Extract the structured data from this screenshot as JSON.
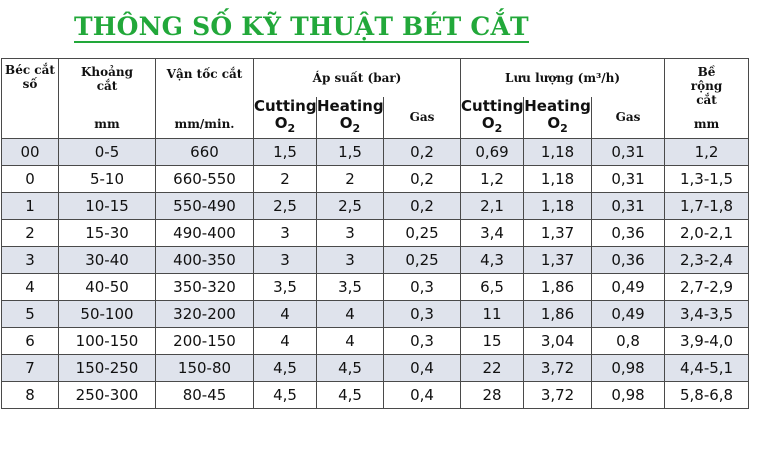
{
  "title": "THÔNG SỐ KỸ THUẬT BÉT CẮT",
  "header": {
    "tip_no": "Béc cắt số",
    "distance": "Khoảng cắt",
    "distance_unit": "mm",
    "speed": "Vận tốc cắt",
    "speed_unit": "mm/min.",
    "pressure": "Áp suất  (bar)",
    "flow": "Lưu lượng  (m³/h)",
    "width": "Bề rộng cắt",
    "width_unit": "mm",
    "cutting": "Cutting",
    "heating": "Heating",
    "o2": "O",
    "o2_sub": "2",
    "gas": "Gas"
  },
  "rows": [
    [
      "00",
      "0-5",
      "660",
      "1,5",
      "1,5",
      "0,2",
      "0,69",
      "1,18",
      "0,31",
      "1,2"
    ],
    [
      "0",
      "5-10",
      "660-550",
      "2",
      "2",
      "0,2",
      "1,2",
      "1,18",
      "0,31",
      "1,3-1,5"
    ],
    [
      "1",
      "10-15",
      "550-490",
      "2,5",
      "2,5",
      "0,2",
      "2,1",
      "1,18",
      "0,31",
      "1,7-1,8"
    ],
    [
      "2",
      "15-30",
      "490-400",
      "3",
      "3",
      "0,25",
      "3,4",
      "1,37",
      "0,36",
      "2,0-2,1"
    ],
    [
      "3",
      "30-40",
      "400-350",
      "3",
      "3",
      "0,25",
      "4,3",
      "1,37",
      "0,36",
      "2,3-2,4"
    ],
    [
      "4",
      "40-50",
      "350-320",
      "3,5",
      "3,5",
      "0,3",
      "6,5",
      "1,86",
      "0,49",
      "2,7-2,9"
    ],
    [
      "5",
      "50-100",
      "320-200",
      "4",
      "4",
      "0,3",
      "11",
      "1,86",
      "0,49",
      "3,4-3,5"
    ],
    [
      "6",
      "100-150",
      "200-150",
      "4",
      "4",
      "0,3",
      "15",
      "3,04",
      "0,8",
      "3,9-4,0"
    ],
    [
      "7",
      "150-250",
      "150-80",
      "4,5",
      "4,5",
      "0,4",
      "22",
      "3,72",
      "0,98",
      "4,4-5,1"
    ],
    [
      "8",
      "250-300",
      "80-45",
      "4,5",
      "4,5",
      "0,4",
      "28",
      "3,72",
      "0,98",
      "5,8-6,8"
    ]
  ],
  "colors": {
    "title": "#22a83a",
    "shade": "#dfe3ec",
    "border": "#4a4a4a"
  }
}
